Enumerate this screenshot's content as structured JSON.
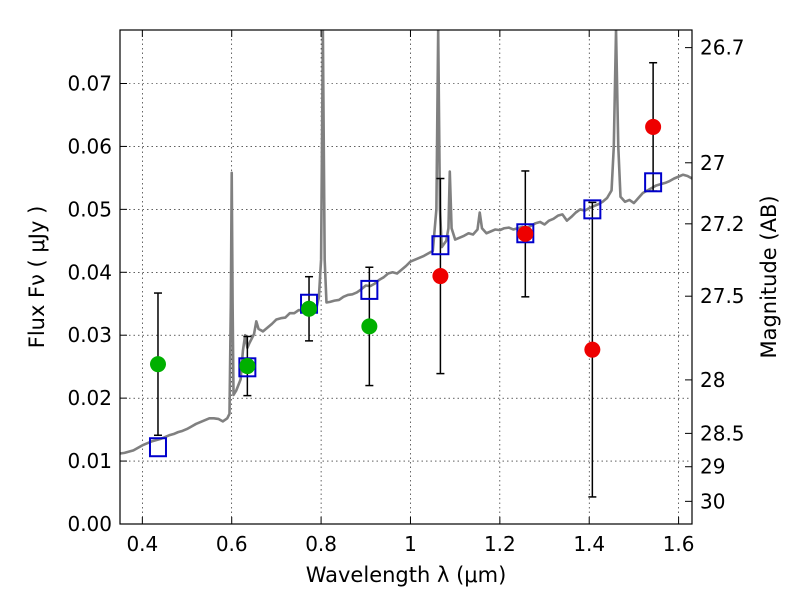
{
  "chart_data": {
    "type": "scatter",
    "xlabel": "Wavelength  λ (μm)",
    "ylabel": "Flux  Fν  ( μJy )",
    "y2label": "Magnitude (AB)",
    "xlim": [
      0.35,
      1.63
    ],
    "ylim": [
      0.0,
      0.0785
    ],
    "xticks": [
      0.4,
      0.6,
      0.8,
      1.0,
      1.2,
      1.4,
      1.6
    ],
    "xtick_labels": [
      "0.4",
      "0.6",
      "0.8",
      "1",
      "1.2",
      "1.4",
      "1.6"
    ],
    "yticks": [
      0.0,
      0.01,
      0.02,
      0.03,
      0.04,
      0.05,
      0.06,
      0.07
    ],
    "ytick_labels": [
      "0.00",
      "0.01",
      "0.02",
      "0.03",
      "0.04",
      "0.05",
      "0.06",
      "0.07"
    ],
    "y2ticks": [
      {
        "label": "26.7",
        "flux": 0.0757
      },
      {
        "label": "27",
        "flux": 0.0574
      },
      {
        "label": "27.2",
        "flux": 0.0477
      },
      {
        "label": "27.5",
        "flux": 0.0362
      },
      {
        "label": "28",
        "flux": 0.0229
      },
      {
        "label": "28.5",
        "flux": 0.0144
      },
      {
        "label": "29",
        "flux": 0.0091
      },
      {
        "label": "30",
        "flux": 0.0036
      }
    ],
    "grid": true,
    "colors": {
      "model": "#808080",
      "synthetic": "#0000cc",
      "green": "#00b000",
      "red": "#ee0000",
      "errorbar": "#000000"
    },
    "series": [
      {
        "type": "line",
        "points": [
          [
            0.35,
            0.0112
          ],
          [
            0.36,
            0.0113
          ],
          [
            0.37,
            0.0115
          ],
          [
            0.38,
            0.0117
          ],
          [
            0.39,
            0.0121
          ],
          [
            0.4,
            0.0125
          ],
          [
            0.41,
            0.0128
          ],
          [
            0.42,
            0.0131
          ],
          [
            0.43,
            0.0133
          ],
          [
            0.44,
            0.0135
          ],
          [
            0.45,
            0.0138
          ],
          [
            0.46,
            0.0141
          ],
          [
            0.47,
            0.0143
          ],
          [
            0.48,
            0.0146
          ],
          [
            0.49,
            0.0148
          ],
          [
            0.5,
            0.0151
          ],
          [
            0.51,
            0.0155
          ],
          [
            0.52,
            0.0159
          ],
          [
            0.53,
            0.0162
          ],
          [
            0.54,
            0.0165
          ],
          [
            0.55,
            0.0168
          ],
          [
            0.56,
            0.0168
          ],
          [
            0.57,
            0.0167
          ],
          [
            0.58,
            0.0163
          ],
          [
            0.59,
            0.0168
          ],
          [
            0.595,
            0.0175
          ],
          [
            0.598,
            0.035
          ],
          [
            0.6,
            0.0558
          ],
          [
            0.602,
            0.035
          ],
          [
            0.604,
            0.0205
          ],
          [
            0.61,
            0.0212
          ],
          [
            0.62,
            0.023
          ],
          [
            0.625,
            0.0275
          ],
          [
            0.63,
            0.03
          ],
          [
            0.635,
            0.028
          ],
          [
            0.64,
            0.0288
          ],
          [
            0.65,
            0.0302
          ],
          [
            0.655,
            0.0322
          ],
          [
            0.66,
            0.031
          ],
          [
            0.67,
            0.0306
          ],
          [
            0.68,
            0.0312
          ],
          [
            0.69,
            0.0318
          ],
          [
            0.7,
            0.0325
          ],
          [
            0.71,
            0.0327
          ],
          [
            0.72,
            0.0328
          ],
          [
            0.73,
            0.0335
          ],
          [
            0.74,
            0.0335
          ],
          [
            0.75,
            0.034
          ],
          [
            0.76,
            0.0339
          ],
          [
            0.77,
            0.0342
          ],
          [
            0.78,
            0.0343
          ],
          [
            0.79,
            0.0345
          ],
          [
            0.795,
            0.036
          ],
          [
            0.8,
            0.042
          ],
          [
            0.804,
            0.0785
          ],
          [
            0.808,
            0.042
          ],
          [
            0.812,
            0.0352
          ],
          [
            0.82,
            0.0353
          ],
          [
            0.83,
            0.0355
          ],
          [
            0.84,
            0.0356
          ],
          [
            0.85,
            0.0361
          ],
          [
            0.86,
            0.0364
          ],
          [
            0.87,
            0.0365
          ],
          [
            0.88,
            0.0368
          ],
          [
            0.89,
            0.0373
          ],
          [
            0.9,
            0.0379
          ],
          [
            0.91,
            0.0378
          ],
          [
            0.92,
            0.0382
          ],
          [
            0.93,
            0.0388
          ],
          [
            0.94,
            0.0392
          ],
          [
            0.95,
            0.0398
          ],
          [
            0.96,
            0.04
          ],
          [
            0.97,
            0.0398
          ],
          [
            0.98,
            0.0404
          ],
          [
            0.99,
            0.041
          ],
          [
            1.0,
            0.0417
          ],
          [
            1.01,
            0.042
          ],
          [
            1.02,
            0.0423
          ],
          [
            1.03,
            0.0426
          ],
          [
            1.04,
            0.043
          ],
          [
            1.05,
            0.0434
          ],
          [
            1.058,
            0.05
          ],
          [
            1.062,
            0.0785
          ],
          [
            1.066,
            0.05
          ],
          [
            1.07,
            0.044
          ],
          [
            1.08,
            0.045
          ],
          [
            1.085,
            0.047
          ],
          [
            1.088,
            0.056
          ],
          [
            1.092,
            0.047
          ],
          [
            1.1,
            0.0452
          ],
          [
            1.11,
            0.0455
          ],
          [
            1.12,
            0.0458
          ],
          [
            1.13,
            0.0462
          ],
          [
            1.14,
            0.046
          ],
          [
            1.15,
            0.0468
          ],
          [
            1.155,
            0.0495
          ],
          [
            1.16,
            0.047
          ],
          [
            1.17,
            0.0462
          ],
          [
            1.18,
            0.0465
          ],
          [
            1.19,
            0.0468
          ],
          [
            1.2,
            0.0467
          ],
          [
            1.21,
            0.047
          ],
          [
            1.22,
            0.0471
          ],
          [
            1.23,
            0.0468
          ],
          [
            1.24,
            0.047
          ],
          [
            1.25,
            0.0472
          ],
          [
            1.26,
            0.047
          ],
          [
            1.27,
            0.0474
          ],
          [
            1.28,
            0.0478
          ],
          [
            1.29,
            0.048
          ],
          [
            1.3,
            0.0476
          ],
          [
            1.31,
            0.0482
          ],
          [
            1.32,
            0.0485
          ],
          [
            1.33,
            0.049
          ],
          [
            1.34,
            0.0492
          ],
          [
            1.35,
            0.0482
          ],
          [
            1.36,
            0.0488
          ],
          [
            1.37,
            0.0495
          ],
          [
            1.38,
            0.05
          ],
          [
            1.39,
            0.0498
          ],
          [
            1.4,
            0.0502
          ],
          [
            1.41,
            0.0505
          ],
          [
            1.42,
            0.0508
          ],
          [
            1.43,
            0.0512
          ],
          [
            1.44,
            0.0518
          ],
          [
            1.45,
            0.053
          ],
          [
            1.455,
            0.06
          ],
          [
            1.46,
            0.0785
          ],
          [
            1.465,
            0.06
          ],
          [
            1.47,
            0.052
          ],
          [
            1.48,
            0.0512
          ],
          [
            1.49,
            0.0515
          ],
          [
            1.5,
            0.051
          ],
          [
            1.51,
            0.0518
          ],
          [
            1.52,
            0.0526
          ],
          [
            1.53,
            0.053
          ],
          [
            1.54,
            0.0534
          ],
          [
            1.55,
            0.0538
          ],
          [
            1.56,
            0.054
          ],
          [
            1.57,
            0.0542
          ],
          [
            1.58,
            0.0545
          ],
          [
            1.59,
            0.0549
          ],
          [
            1.6,
            0.0552
          ],
          [
            1.61,
            0.0555
          ],
          [
            1.62,
            0.0553
          ],
          [
            1.63,
            0.0549
          ]
        ]
      },
      {
        "type": "square",
        "x": [
          0.435,
          0.635,
          0.773,
          0.908,
          1.067,
          1.257,
          1.407,
          1.543
        ],
        "y": [
          0.0122,
          0.0249,
          0.035,
          0.0372,
          0.0443,
          0.0462,
          0.05,
          0.0543
        ]
      },
      {
        "type": "marker",
        "x": [
          0.435,
          0.635,
          0.773,
          0.908
        ],
        "y": [
          0.0254,
          0.0251,
          0.0342,
          0.0314
        ],
        "yerr": [
          0.0113,
          0.0047,
          0.0051,
          0.0094
        ],
        "color": "green"
      },
      {
        "type": "marker",
        "x": [
          1.067,
          1.257,
          1.407,
          1.543
        ],
        "y": [
          0.0394,
          0.0461,
          0.0277,
          0.0631
        ],
        "yerr": [
          0.0155,
          0.01,
          0.0234,
          0.0102
        ],
        "color": "red"
      }
    ]
  }
}
